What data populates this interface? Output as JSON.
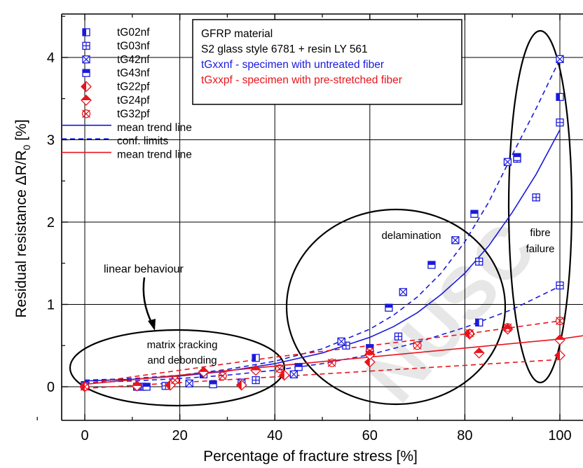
{
  "chart_data": {
    "type": "scatter",
    "xlabel": "Percentage of fracture stress [%]",
    "ylabel": "Residual resistance ΔR/R0 [%]",
    "ylabel_main": "Residual resistance ΔR/R",
    "ylabel_sub": "0",
    "ylabel_unit": " [%]",
    "xlim": [
      -10,
      105
    ],
    "ylim": [
      -0.2,
      4.6
    ],
    "x_ticks": [
      0,
      20,
      40,
      60,
      80,
      100
    ],
    "y_ticks": [
      0,
      1,
      2,
      3,
      4
    ],
    "x_tick_labels": [
      "0",
      "20",
      "40",
      "60",
      "80",
      "100"
    ],
    "y_tick_labels": [
      "0",
      "1",
      "2",
      "3",
      "4"
    ],
    "grid": true,
    "legend_position": "top-left",
    "colors": {
      "blue": "#1a1adc",
      "red": "#e8141c",
      "axis": "#000000"
    },
    "series": [
      {
        "name": "tG02nf",
        "marker": "square-left-half",
        "color": "#1a1adc",
        "points": [
          [
            0,
            0.02
          ],
          [
            25,
            0.15
          ],
          [
            36,
            0.35
          ],
          [
            83,
            0.78
          ],
          [
            100,
            3.52
          ]
        ]
      },
      {
        "name": "tG03nf",
        "marker": "square-plus",
        "color": "#1a1adc",
        "points": [
          [
            0,
            0.01
          ],
          [
            12,
            0.0
          ],
          [
            17,
            0.01
          ],
          [
            36,
            0.08
          ],
          [
            55,
            0.5
          ],
          [
            66,
            0.61
          ],
          [
            83,
            1.52
          ],
          [
            91,
            2.77
          ],
          [
            95,
            2.3
          ],
          [
            100,
            3.21
          ],
          [
            100,
            1.23
          ]
        ]
      },
      {
        "name": "tG42nf",
        "marker": "square-x",
        "color": "#1a1adc",
        "points": [
          [
            11,
            0.0
          ],
          [
            22,
            0.04
          ],
          [
            33,
            0.05
          ],
          [
            44,
            0.15
          ],
          [
            54,
            0.55
          ],
          [
            67,
            1.15
          ],
          [
            78,
            1.78
          ],
          [
            89,
            2.73
          ],
          [
            100,
            3.98
          ]
        ]
      },
      {
        "name": "tG43nf",
        "marker": "square-top-half",
        "color": "#1a1adc",
        "points": [
          [
            13,
            0.0
          ],
          [
            27,
            0.03
          ],
          [
            45,
            0.24
          ],
          [
            60,
            0.47
          ],
          [
            64,
            0.96
          ],
          [
            73,
            1.48
          ],
          [
            82,
            2.1
          ],
          [
            91,
            2.79
          ]
        ]
      },
      {
        "name": "tG22pf",
        "marker": "diamond-left-half",
        "color": "#e8141c",
        "points": [
          [
            0,
            0.0
          ],
          [
            18,
            0.02
          ],
          [
            33,
            0.02
          ],
          [
            42,
            0.14
          ],
          [
            60,
            0.3
          ],
          [
            81,
            0.64
          ],
          [
            100,
            0.38
          ]
        ]
      },
      {
        "name": "tG24pf",
        "marker": "diamond-top-half",
        "color": "#e8141c",
        "points": [
          [
            11,
            0.01
          ],
          [
            25,
            0.18
          ],
          [
            36,
            0.2
          ],
          [
            60,
            0.39
          ],
          [
            83,
            0.41
          ],
          [
            89,
            0.7
          ],
          [
            100,
            0.57
          ]
        ]
      },
      {
        "name": "tG32pf",
        "marker": "circle-x",
        "color": "#e8141c",
        "points": [
          [
            0,
            0.0
          ],
          [
            19,
            0.08
          ],
          [
            29,
            0.13
          ],
          [
            41,
            0.22
          ],
          [
            52,
            0.29
          ],
          [
            60,
            0.43
          ],
          [
            70,
            0.5
          ],
          [
            81,
            0.65
          ],
          [
            89,
            0.72
          ],
          [
            100,
            0.8
          ]
        ]
      }
    ],
    "lines": [
      {
        "name": "mean trend line",
        "color": "#1a1adc",
        "dash": "solid",
        "points": [
          [
            0,
            0.07
          ],
          [
            10,
            0.09
          ],
          [
            20,
            0.13
          ],
          [
            30,
            0.19
          ],
          [
            40,
            0.28
          ],
          [
            50,
            0.41
          ],
          [
            60,
            0.6
          ],
          [
            65,
            0.73
          ],
          [
            70,
            0.9
          ],
          [
            75,
            1.12
          ],
          [
            80,
            1.38
          ],
          [
            85,
            1.71
          ],
          [
            90,
            2.12
          ],
          [
            95,
            2.58
          ],
          [
            100,
            3.12
          ]
        ]
      },
      {
        "name": "conf. limits",
        "color": "#1a1adc",
        "dash": "dashed",
        "points": [
          [
            0,
            0.08
          ],
          [
            10,
            0.1
          ],
          [
            20,
            0.14
          ],
          [
            30,
            0.21
          ],
          [
            40,
            0.31
          ],
          [
            50,
            0.46
          ],
          [
            60,
            0.7
          ],
          [
            65,
            0.87
          ],
          [
            70,
            1.09
          ],
          [
            75,
            1.38
          ],
          [
            80,
            1.76
          ],
          [
            85,
            2.24
          ],
          [
            90,
            2.82
          ],
          [
            95,
            3.38
          ],
          [
            100,
            3.98
          ]
        ]
      },
      {
        "name": "",
        "color": "#1a1adc",
        "dash": "dashed",
        "points": [
          [
            0,
            0.05
          ],
          [
            10,
            0.07
          ],
          [
            20,
            0.1
          ],
          [
            30,
            0.14
          ],
          [
            40,
            0.2
          ],
          [
            50,
            0.28
          ],
          [
            60,
            0.39
          ],
          [
            70,
            0.54
          ],
          [
            80,
            0.72
          ],
          [
            90,
            0.94
          ],
          [
            100,
            1.22
          ]
        ]
      },
      {
        "name": "mean trend line",
        "color": "#e8141c",
        "dash": "solid",
        "points": [
          [
            0,
            0.03
          ],
          [
            20,
            0.14
          ],
          [
            40,
            0.25
          ],
          [
            60,
            0.36
          ],
          [
            80,
            0.47
          ],
          [
            100,
            0.58
          ],
          [
            105,
            0.62
          ]
        ]
      },
      {
        "name": "",
        "color": "#e8141c",
        "dash": "dashed",
        "points": [
          [
            0,
            0.04
          ],
          [
            20,
            0.2
          ],
          [
            40,
            0.36
          ],
          [
            60,
            0.5
          ],
          [
            80,
            0.64
          ],
          [
            100,
            0.8
          ]
        ]
      },
      {
        "name": "",
        "color": "#e8141c",
        "dash": "dashed",
        "points": [
          [
            0,
            -0.02
          ],
          [
            20,
            0.05
          ],
          [
            40,
            0.12
          ],
          [
            60,
            0.19
          ],
          [
            80,
            0.26
          ],
          [
            100,
            0.33
          ]
        ]
      }
    ],
    "legend_entries": [
      {
        "name": "tG02nf",
        "kind": "marker",
        "marker": "square-left-half",
        "color": "#1a1adc"
      },
      {
        "name": "tG03nf",
        "kind": "marker",
        "marker": "square-plus",
        "color": "#1a1adc"
      },
      {
        "name": "tG42nf",
        "kind": "marker",
        "marker": "square-x",
        "color": "#1a1adc"
      },
      {
        "name": "tG43nf",
        "kind": "marker",
        "marker": "square-top-half",
        "color": "#1a1adc"
      },
      {
        "name": "tG22pf",
        "kind": "marker",
        "marker": "diamond-left-half",
        "color": "#e8141c"
      },
      {
        "name": "tG24pf",
        "kind": "marker",
        "marker": "diamond-top-half",
        "color": "#e8141c"
      },
      {
        "name": "tG32pf",
        "kind": "marker",
        "marker": "circle-x",
        "color": "#e8141c"
      },
      {
        "name": "mean trend line",
        "kind": "line",
        "dash": "solid",
        "color": "#1a1adc"
      },
      {
        "name": "conf. limits",
        "kind": "line",
        "dash": "dashed",
        "color": "#1a1adc"
      },
      {
        "name": "mean trend line",
        "kind": "line",
        "dash": "solid",
        "color": "#e8141c"
      }
    ],
    "info_box": [
      {
        "text": "GFRP material",
        "color": "#000000"
      },
      {
        "text": "S2 glass style 6781 + resin LY 561",
        "color": "#000000"
      },
      {
        "text": "tGxxnf - specimen with untreated fiber",
        "color": "#1a1adc"
      },
      {
        "text": "tGxxpf - specimen with pre-stretched fiber",
        "color": "#e8141c"
      }
    ],
    "annotations": {
      "linear": "linear behaviour",
      "matrix_1": "matrix cracking",
      "matrix_2": "and debonding",
      "delamination": "delamination",
      "fibre_1": "fibre",
      "fibre_2": "failure"
    },
    "watermark": "NUSC"
  }
}
